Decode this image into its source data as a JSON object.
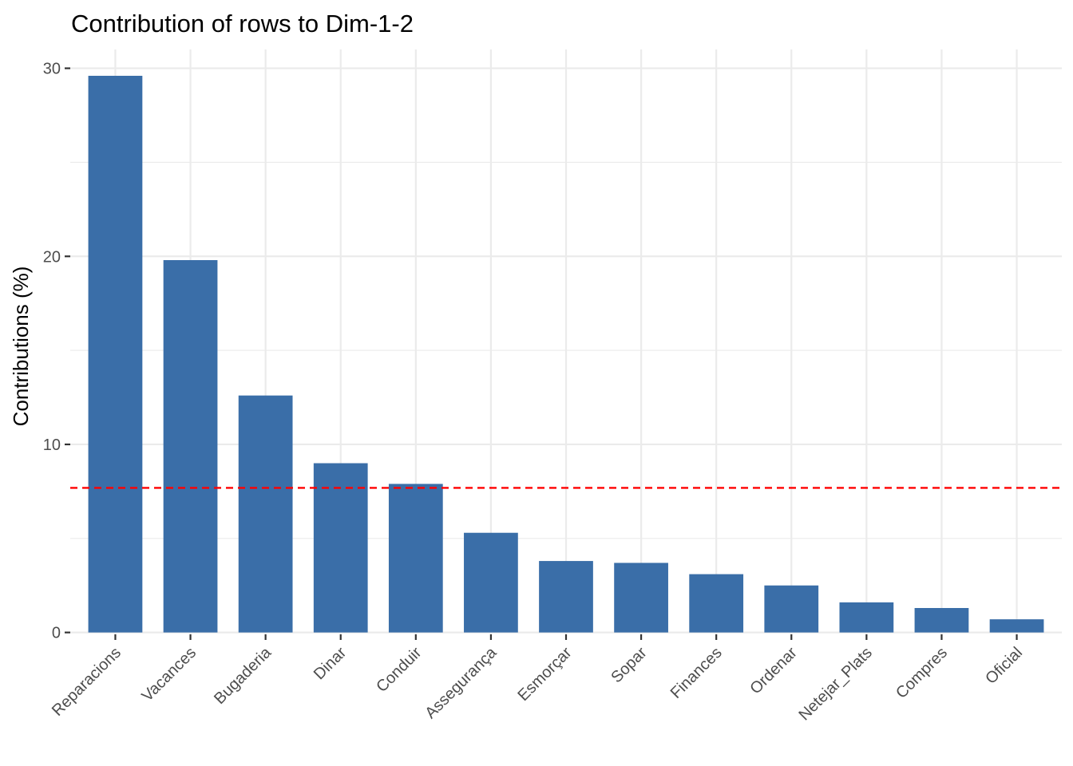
{
  "chart_data": {
    "type": "bar",
    "title": "Contribution of rows to Dim-1-2",
    "xlabel": "",
    "ylabel": "Contributions (%)",
    "categories": [
      "Reparacions",
      "Vacances",
      "Bugaderia",
      "Dinar",
      "Conduir",
      "Assegurança",
      "Esmorçar",
      "Sopar",
      "Finances",
      "Ordenar",
      "Netejar_Plats",
      "Compres",
      "Oficial"
    ],
    "values": [
      29.6,
      19.8,
      12.6,
      9.0,
      7.9,
      5.3,
      3.8,
      3.7,
      3.1,
      2.5,
      1.6,
      1.3,
      0.7
    ],
    "ylim": [
      -0.1,
      31.0
    ],
    "yticks": [
      0,
      10,
      20,
      30
    ],
    "reference_line": 7.69,
    "bar_color": "#3A6EA8",
    "reference_color": "#FF0000",
    "grid": true,
    "legend": "none"
  }
}
